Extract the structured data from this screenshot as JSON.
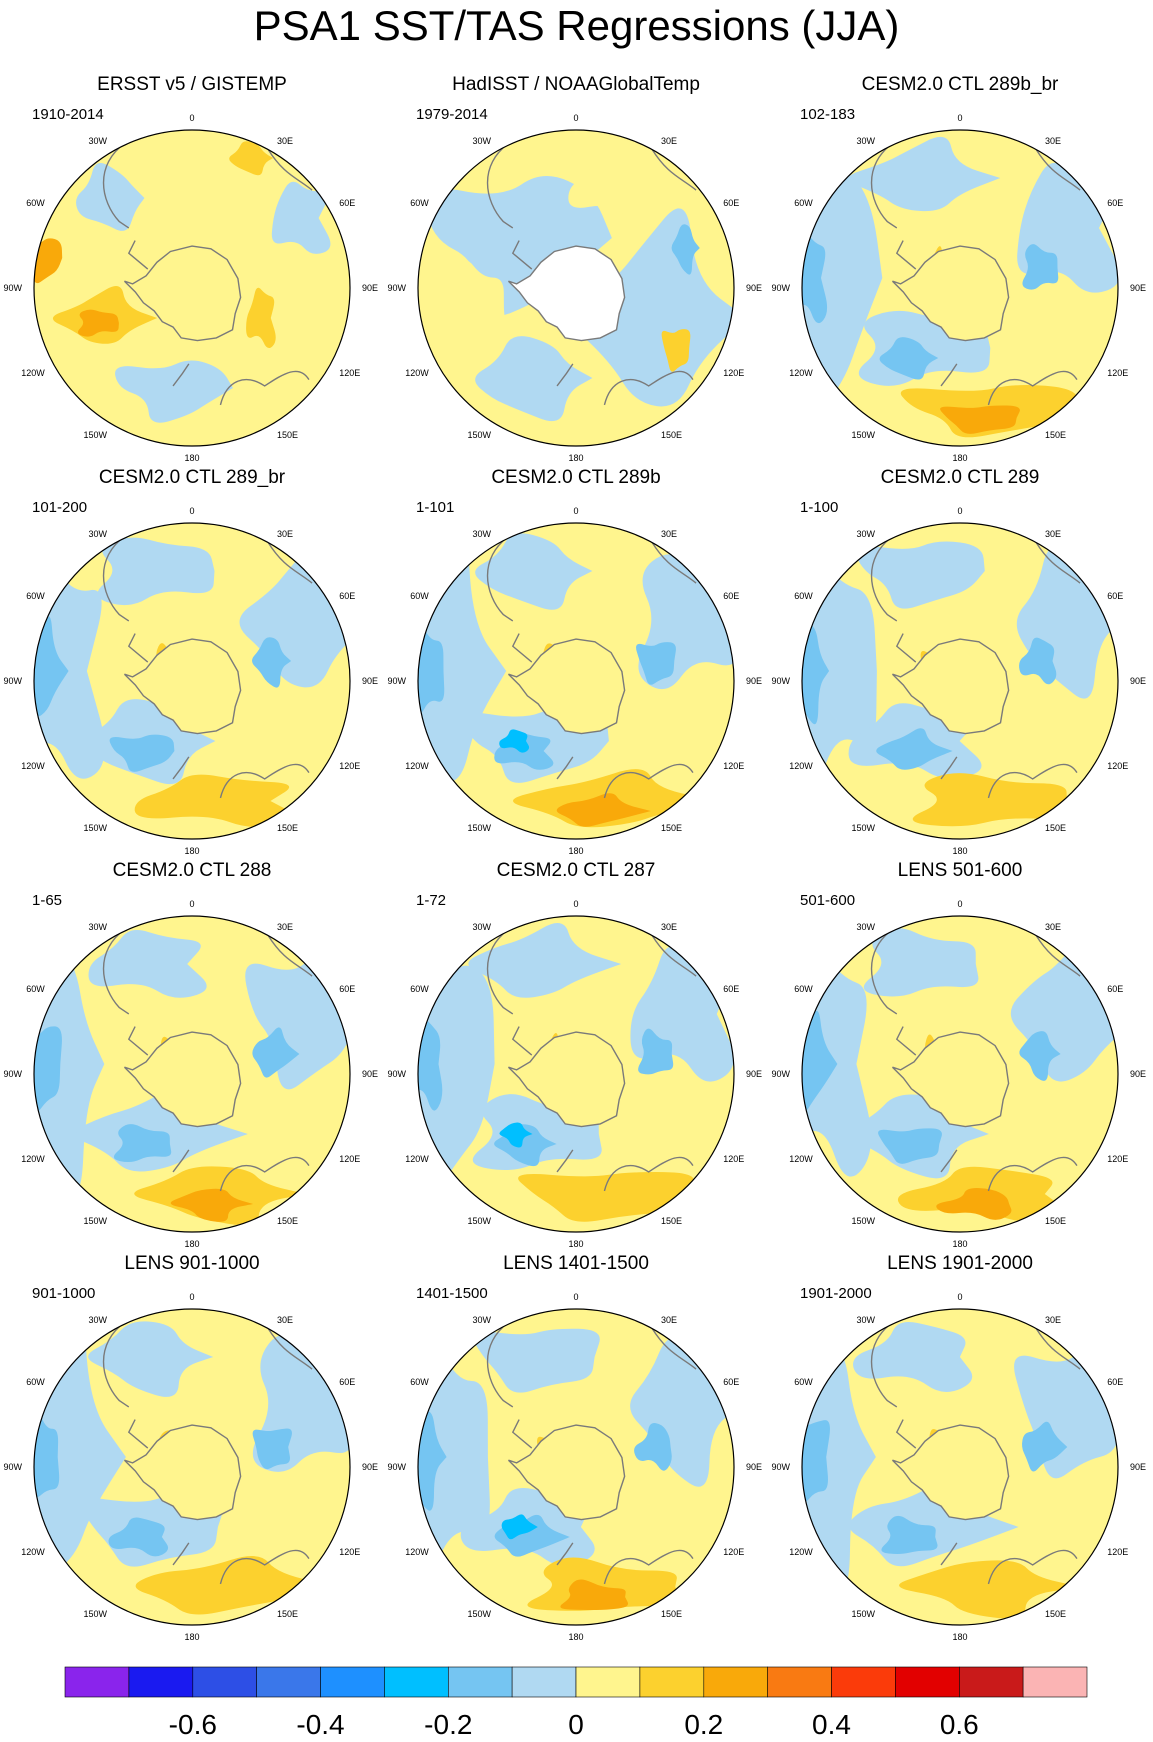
{
  "title": "PSA1 SST/TAS Regressions (JJA)",
  "panels": [
    {
      "title": "ERSST v5 / GISTEMP",
      "period": "1910-2014",
      "style": "ersst"
    },
    {
      "title": "HadISST / NOAAGlobalTemp",
      "period": "1979-2014",
      "style": "hadisst"
    },
    {
      "title": "CESM2.0 CTL 289b_br",
      "period": "102-183",
      "style": "model"
    },
    {
      "title": "CESM2.0 CTL 289_br",
      "period": "101-200",
      "style": "model"
    },
    {
      "title": "CESM2.0 CTL 289b",
      "period": "1-101",
      "style": "model"
    },
    {
      "title": "CESM2.0 CTL 289",
      "period": "1-100",
      "style": "model"
    },
    {
      "title": "CESM2.0 CTL 288",
      "period": "1-65",
      "style": "model"
    },
    {
      "title": "CESM2.0 CTL 287",
      "period": "1-72",
      "style": "model"
    },
    {
      "title": "LENS 501-600",
      "period": "501-600",
      "style": "model"
    },
    {
      "title": "LENS 901-1000",
      "period": "901-1000",
      "style": "model"
    },
    {
      "title": "LENS 1401-1500",
      "period": "1401-1500",
      "style": "model"
    },
    {
      "title": "LENS 1901-2000",
      "period": "1901-2000",
      "style": "model"
    }
  ],
  "longitude_labels": [
    "0",
    "30E",
    "60E",
    "90E",
    "120E",
    "150E",
    "180",
    "150W",
    "120W",
    "90W",
    "60W",
    "30W"
  ],
  "colorbar": {
    "colors": [
      "#8a24ec",
      "#1a1af0",
      "#2d4fe6",
      "#3a77ea",
      "#1e90ff",
      "#00bfff",
      "#75c5f2",
      "#b0d9f2",
      "#fff58e",
      "#fcd12e",
      "#f9a90a",
      "#f97a12",
      "#fb3b0a",
      "#e20000",
      "#c91a1a",
      "#fbb4b4"
    ],
    "tick_labels": [
      "-0.6",
      "-0.4",
      "-0.2",
      "0",
      "0.2",
      "0.4",
      "0.6"
    ]
  },
  "colors": {
    "ocean_base": "#fff58e",
    "antarctica_fill": "#ffffff",
    "coastline": "#7a7a7a"
  }
}
